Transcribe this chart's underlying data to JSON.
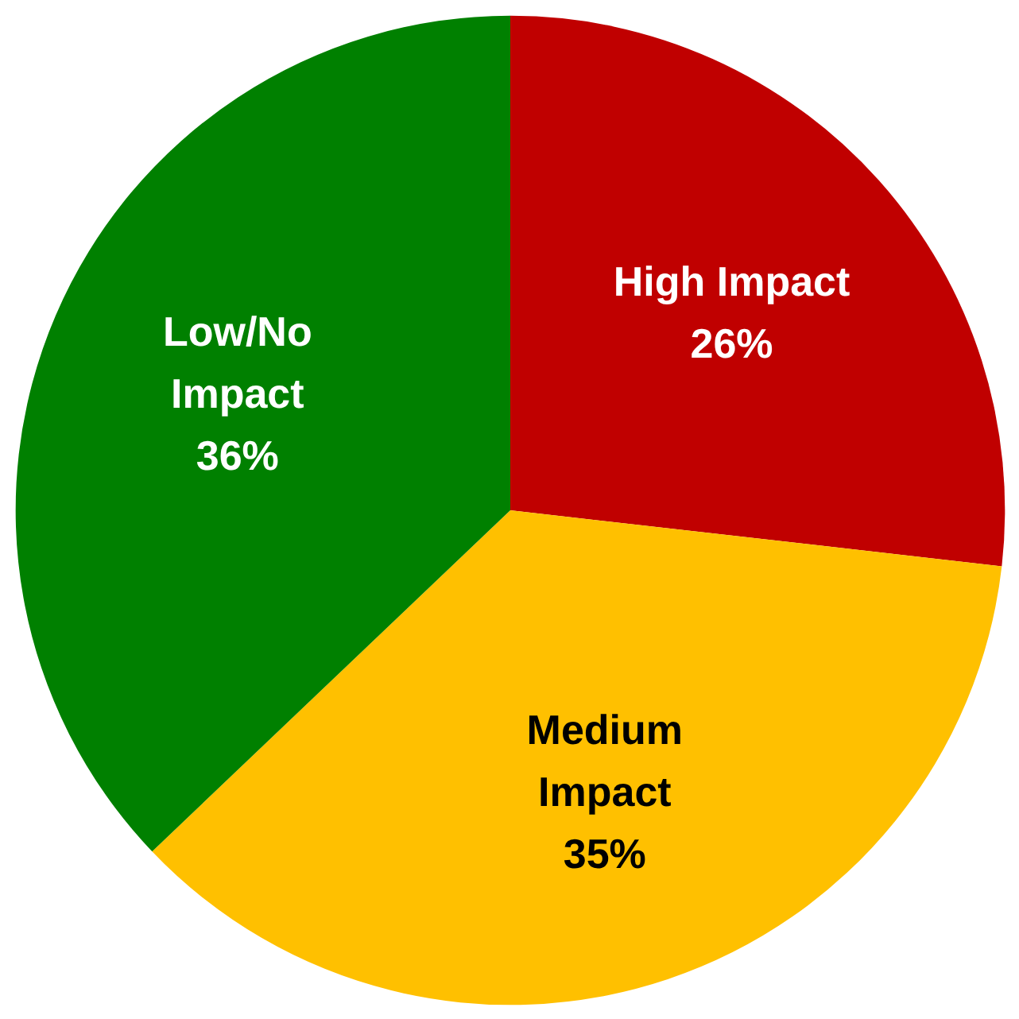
{
  "chart_data": {
    "type": "pie",
    "categories": [
      "High Impact",
      "Medium Impact",
      "Low/No Impact"
    ],
    "values": [
      26,
      35,
      36
    ],
    "colors": [
      "#c00000",
      "#ffc000",
      "#008000"
    ],
    "value_labels": [
      "26%",
      "35%",
      "36%"
    ]
  }
}
